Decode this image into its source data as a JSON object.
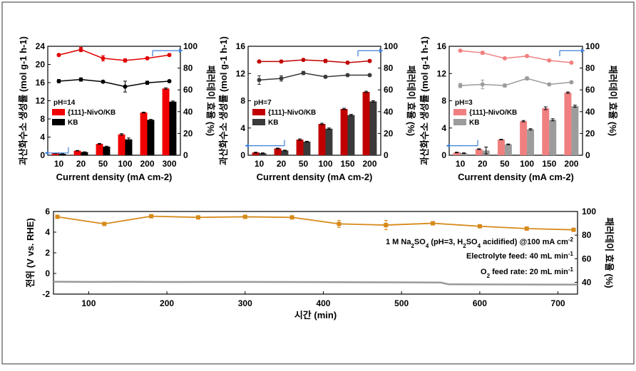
{
  "chart_data": [
    {
      "type": "bar",
      "annotation": "pH=14",
      "xlabel": "Current density (mA cm-2)",
      "ylabel": "과산화수소 생성률 (mol g-1 h-1)",
      "y2label": "패러데이 효율 (%)",
      "categories": [
        "10",
        "20",
        "50",
        "100",
        "200",
        "300"
      ],
      "ylim": [
        0,
        24
      ],
      "yticks": [
        0,
        4,
        8,
        12,
        16,
        20,
        24
      ],
      "y2lim": [
        0,
        100
      ],
      "y2ticks": [
        0,
        20,
        40,
        60,
        80,
        100
      ],
      "series": [
        {
          "name": "{111}-NivO/KB",
          "kind": "bar",
          "color": "#f00000",
          "values": [
            0.4,
            1.0,
            2.5,
            4.6,
            9.4,
            14.7
          ],
          "err": [
            0.05,
            0.05,
            0.1,
            0.15,
            0.1,
            0.15
          ]
        },
        {
          "name": "KB",
          "kind": "bar",
          "color": "#000000",
          "values": [
            0.3,
            0.7,
            1.9,
            3.5,
            7.8,
            11.8
          ],
          "err": [
            0.05,
            0.05,
            0.1,
            0.3,
            0.1,
            0.15
          ]
        },
        {
          "kind": "line",
          "axis": "right",
          "color": "#e00000",
          "values": [
            92,
            97,
            89,
            87,
            89,
            92
          ],
          "err": [
            1,
            2,
            2.5,
            1.5,
            1,
            1
          ]
        },
        {
          "kind": "line",
          "axis": "right",
          "color": "#000000",
          "values": [
            68,
            69.5,
            67.5,
            63,
            66.5,
            68
          ],
          "err": [
            1.5,
            1.5,
            1,
            5,
            1.5,
            1
          ]
        }
      ]
    },
    {
      "type": "bar",
      "annotation": "pH=7",
      "xlabel": "Current density (mA cm-2)",
      "ylabel": "과산화수소 생성률 (mol g-1 h-1)",
      "y2label": "패러데이 효율 (%)",
      "categories": [
        "10",
        "20",
        "50",
        "100",
        "150",
        "200"
      ],
      "ylim": [
        0,
        16
      ],
      "yticks": [
        0,
        4,
        8,
        12,
        16
      ],
      "y2lim": [
        0,
        100
      ],
      "y2ticks": [
        0,
        20,
        40,
        60,
        80,
        100
      ],
      "series": [
        {
          "name": "{111}-NivO/KB",
          "kind": "bar",
          "color": "#c00000",
          "values": [
            0.4,
            1.0,
            2.3,
            4.6,
            6.8,
            9.3
          ],
          "err": [
            0.05,
            0.05,
            0.1,
            0.1,
            0.1,
            0.1
          ]
        },
        {
          "name": "KB",
          "kind": "bar",
          "color": "#3a3a3a",
          "values": [
            0.3,
            0.7,
            2.0,
            3.9,
            5.9,
            7.9
          ],
          "err": [
            0.05,
            0.05,
            0.05,
            0.1,
            0.1,
            0.1
          ]
        },
        {
          "kind": "line",
          "axis": "right",
          "color": "#c00000",
          "values": [
            86,
            86,
            87.5,
            86.5,
            85,
            86.5
          ],
          "err": [
            1,
            1,
            1,
            1.5,
            1,
            1
          ]
        },
        {
          "kind": "line",
          "axis": "right",
          "color": "#3a3a3a",
          "values": [
            69,
            70.5,
            75.5,
            72,
            73.5,
            73.5
          ],
          "err": [
            4,
            2.5,
            1.5,
            1,
            1,
            1
          ]
        }
      ]
    },
    {
      "type": "bar",
      "annotation": "pH=3",
      "xlabel": "Current density (mA cm-2)",
      "ylabel": "과산화수소 생성률 (mol g-1 h-1)",
      "y2label": "패러데이 효율 (%)",
      "categories": [
        "10",
        "20",
        "50",
        "100",
        "150",
        "200"
      ],
      "ylim": [
        0,
        16
      ],
      "yticks": [
        0,
        4,
        8,
        12,
        16
      ],
      "y2lim": [
        0,
        100
      ],
      "y2ticks": [
        0,
        20,
        40,
        60,
        80,
        100
      ],
      "series": [
        {
          "name": "{111}-NivO/KB",
          "kind": "bar",
          "color": "#f08080",
          "values": [
            0.4,
            0.9,
            2.3,
            5.0,
            6.9,
            9.2
          ],
          "err": [
            0.05,
            0.05,
            0.05,
            0.1,
            0.2,
            0.1
          ]
        },
        {
          "name": "KB",
          "kind": "bar",
          "color": "#9c9c9c",
          "values": [
            0.3,
            0.7,
            1.6,
            3.8,
            5.2,
            7.2
          ],
          "err": [
            0.05,
            0.5,
            0.05,
            0.1,
            0.15,
            0.15
          ]
        },
        {
          "kind": "line",
          "axis": "right",
          "color": "#f08080",
          "values": [
            96,
            94,
            89,
            91,
            87,
            85
          ],
          "err": [
            0.8,
            1.5,
            1,
            1,
            1,
            0.8
          ]
        },
        {
          "kind": "line",
          "axis": "right",
          "color": "#9c9c9c",
          "values": [
            64,
            65,
            64,
            70.5,
            65,
            67
          ],
          "err": [
            2,
            4,
            1.5,
            1.5,
            1,
            1
          ]
        }
      ]
    },
    {
      "type": "line",
      "xlabel": "시간 (min)",
      "ylabel": "전위 (V vs. RHE)",
      "y2label": "패러데이 효율 (%)",
      "xlim": [
        55,
        725
      ],
      "xticks": [
        100,
        200,
        300,
        400,
        500,
        600,
        700
      ],
      "ylim": [
        -2,
        6
      ],
      "yticks": [
        -2,
        0,
        2,
        4,
        6
      ],
      "y2lim": [
        30,
        100
      ],
      "y2ticks": [
        40,
        60,
        80,
        100
      ],
      "annotations": [
        "1 M Na2SO4 (pH=3, H2SO4 acidified) @100 mA cm-2",
        "Electrolyte feed: 40 mL min-1",
        "O2 feed rate: 20 mL min-1"
      ],
      "series": [
        {
          "kind": "line",
          "axis": "right",
          "color": "#d68a1a",
          "x": [
            60,
            120,
            180,
            240,
            300,
            360,
            420,
            480,
            540,
            600,
            660,
            720
          ],
          "values": [
            95.5,
            89.5,
            96,
            95,
            95.5,
            95,
            89.5,
            88.5,
            90,
            87.5,
            85.5,
            84.5
          ],
          "err": [
            0.5,
            0.5,
            0.5,
            0.5,
            0.5,
            0.5,
            3,
            4,
            1.5,
            0.8,
            0.5,
            0.5
          ]
        },
        {
          "kind": "line",
          "axis": "left",
          "color": "#9a9a9a",
          "x": [
            55,
            100,
            150,
            200,
            250,
            300,
            350,
            400,
            450,
            500,
            550,
            560,
            600,
            650,
            700,
            725
          ],
          "values": [
            -0.8,
            -0.82,
            -0.81,
            -0.83,
            -0.82,
            -0.82,
            -0.83,
            -0.84,
            -0.85,
            -0.86,
            -0.88,
            -1.05,
            -1.06,
            -1.07,
            -1.08,
            -1.08
          ]
        }
      ]
    }
  ]
}
